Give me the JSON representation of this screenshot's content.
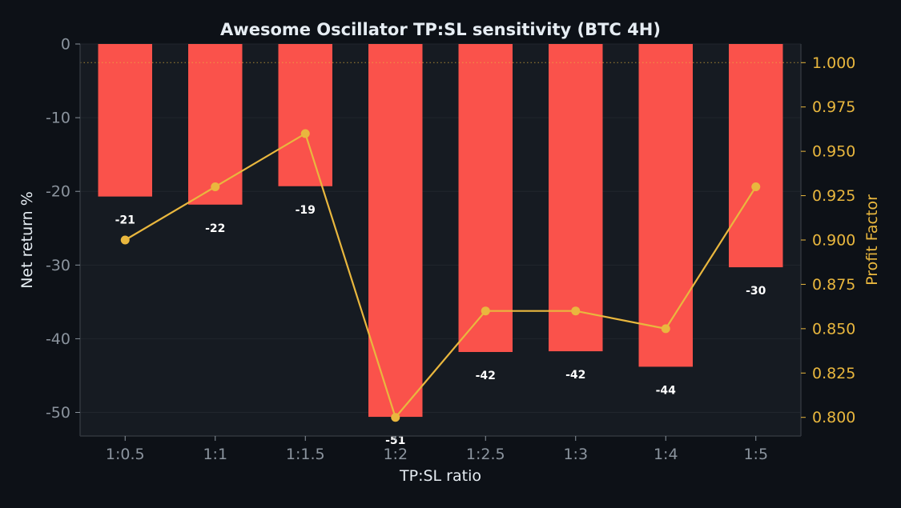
{
  "chart_data": {
    "type": "bar",
    "title": "Awesome Oscillator TP:SL sensitivity (BTC 4H)",
    "xlabel": "TP:SL ratio",
    "ylabel": "Net return %",
    "y2label": "Profit Factor",
    "categories": [
      "1:0.5",
      "1:1",
      "1:1.5",
      "1:2",
      "1:2.5",
      "1:3",
      "1:4",
      "1:5"
    ],
    "series": [
      {
        "values": [
          -20.7,
          -21.8,
          -19.3,
          -50.6,
          -41.8,
          -41.7,
          -43.8,
          -30.3
        ],
        "labels": [
          "-21",
          "-22",
          "-19",
          "-51",
          "-42",
          "-42",
          "-44",
          "-30"
        ],
        "color": "#fa524b",
        "axis": "left",
        "kind": "bar"
      },
      {
        "values": [
          0.9,
          0.93,
          0.96,
          0.8,
          0.86,
          0.86,
          0.85,
          0.93
        ],
        "color": "#e9b73e",
        "axis": "right",
        "kind": "line"
      }
    ],
    "ylim": [
      -53.2,
      0
    ],
    "y2lim": [
      0.7895,
      1.0105
    ],
    "yticks": [
      0,
      -10,
      -20,
      -30,
      -40,
      -50
    ],
    "y2ticks": [
      0.8,
      0.825,
      0.85,
      0.875,
      0.9,
      0.925,
      0.95,
      0.975,
      1.0
    ],
    "y2tick_labels": [
      "0.800",
      "0.825",
      "0.850",
      "0.875",
      "0.900",
      "0.925",
      "0.950",
      "0.975",
      "1.000"
    ],
    "reference_line": {
      "axis": "right",
      "value": 1.0,
      "style": "dotted"
    },
    "grid": true,
    "colors": {
      "background": "#0d1117",
      "plot_background": "#161b22",
      "spine": "#30363d",
      "grid": "#21262d",
      "text": "#e6edf3",
      "tick_text": "#8b949e",
      "right_axis": "#e9b73e",
      "bar": "#fa524b",
      "line": "#e9b73e",
      "data_label": "#ffffff"
    }
  }
}
